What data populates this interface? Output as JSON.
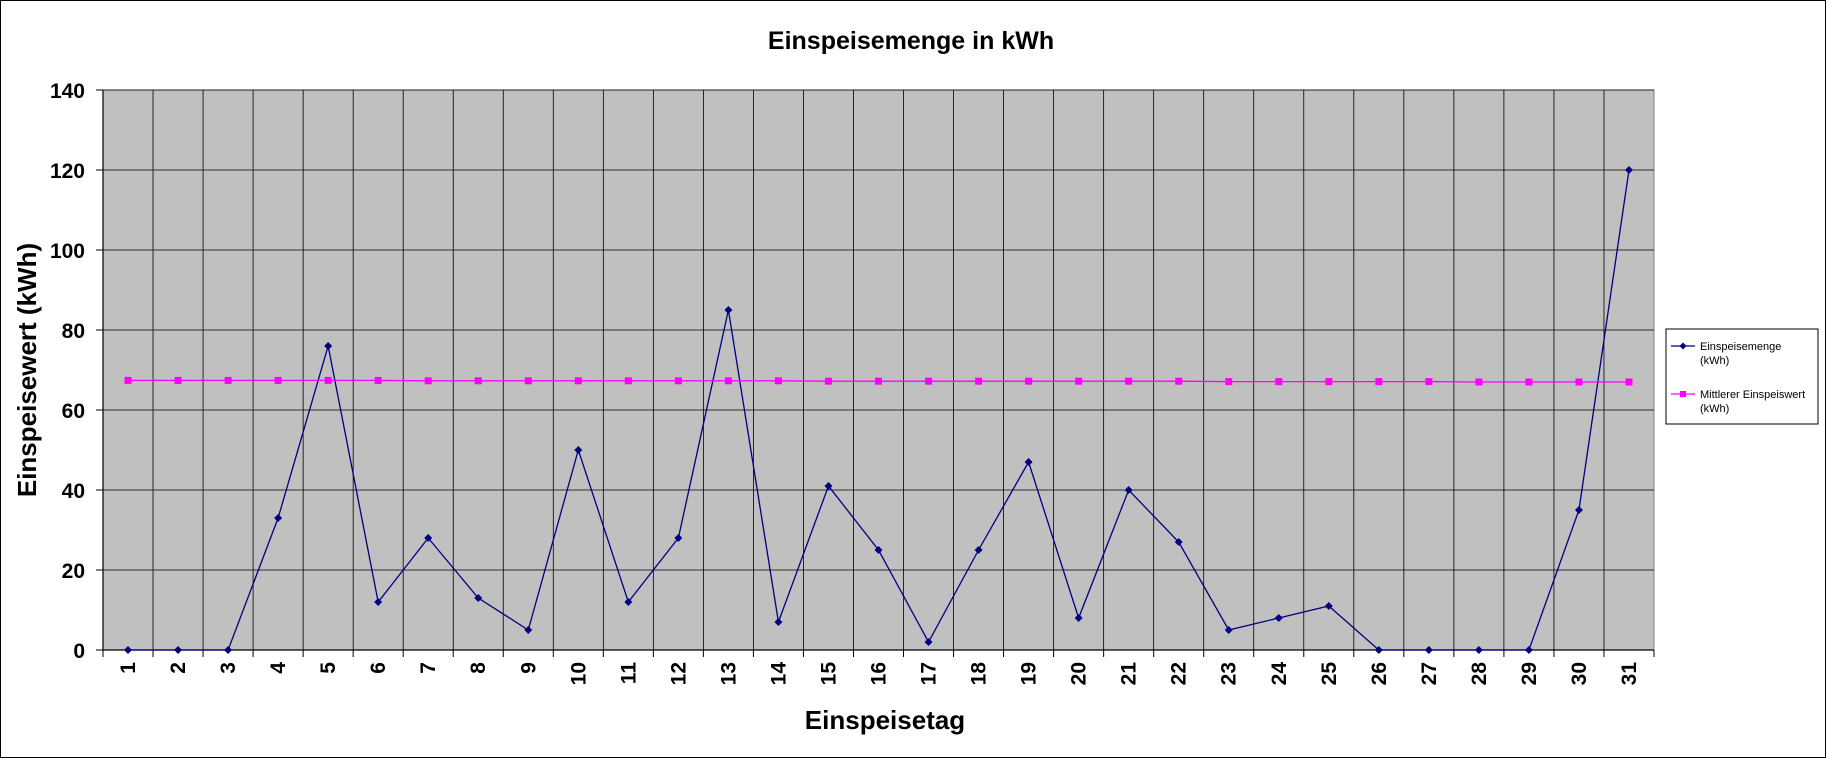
{
  "chart_data": {
    "type": "line",
    "title": "Einspeisemenge in kWh",
    "xlabel": "Einspeisetag",
    "ylabel": "Einspeisewert  (kWh)",
    "ylim": [
      0,
      140
    ],
    "yticks": [
      "0",
      "20",
      "40",
      "60",
      "80",
      "100",
      "120",
      "140"
    ],
    "categories": [
      "1",
      "2",
      "3",
      "4",
      "5",
      "6",
      "7",
      "8",
      "9",
      "10",
      "11",
      "12",
      "13",
      "14",
      "15",
      "16",
      "17",
      "18",
      "19",
      "20",
      "21",
      "22",
      "23",
      "24",
      "25",
      "26",
      "27",
      "28",
      "29",
      "30",
      "31"
    ],
    "grid": true,
    "legend_position": "right",
    "plot_background": "#c0c0c0",
    "series": [
      {
        "name": "Einspeisemenge",
        "name_unit": "(kWh)",
        "color": "#000080",
        "marker": "diamond",
        "values": [
          0,
          0,
          0,
          33,
          76,
          12,
          28,
          13,
          5,
          50,
          12,
          28,
          85,
          7,
          41,
          25,
          2,
          25,
          47,
          8,
          40,
          27,
          5,
          8,
          11,
          0,
          0,
          0,
          0,
          35,
          120
        ]
      },
      {
        "name": "Mittlerer Einspeiswert",
        "name_unit": "(kWh)",
        "color": "#ff00ff",
        "marker": "square",
        "values": [
          67.4,
          67.4,
          67.4,
          67.4,
          67.4,
          67.4,
          67.3,
          67.3,
          67.3,
          67.3,
          67.3,
          67.3,
          67.3,
          67.3,
          67.2,
          67.2,
          67.2,
          67.2,
          67.2,
          67.2,
          67.2,
          67.2,
          67.1,
          67.1,
          67.1,
          67.1,
          67.1,
          67.0,
          67.0,
          67.0,
          67.0
        ]
      }
    ]
  }
}
